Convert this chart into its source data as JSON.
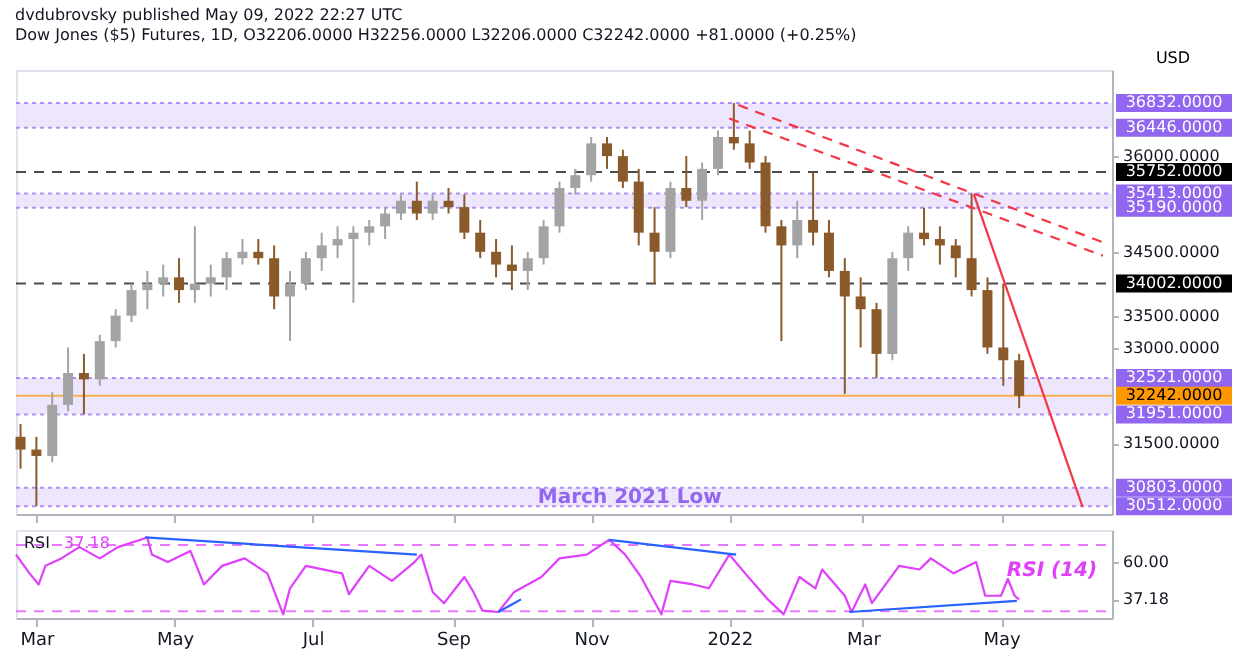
{
  "chart_data": [
    {
      "type": "candlestick",
      "title": "dvdubrovsky published May 09, 2022 22:27 UTC",
      "subtitle": "Dow Jones ($5) Futures, 1D, O32206.0000 H32256.0000 L32206.0000 C32242.0000 +81.0000 (+0.25%)",
      "ylabel": "USD",
      "x": [
        "2021-02-22",
        "2021-03-01",
        "2021-03-08",
        "2021-03-15",
        "2021-03-22",
        "2021-03-29",
        "2021-04-05",
        "2021-04-12",
        "2021-04-19",
        "2021-04-26",
        "2021-05-03",
        "2021-05-10",
        "2021-05-17",
        "2021-05-24",
        "2021-05-31",
        "2021-06-07",
        "2021-06-14",
        "2021-06-21",
        "2021-06-28",
        "2021-07-05",
        "2021-07-12",
        "2021-07-19",
        "2021-07-26",
        "2021-08-02",
        "2021-08-09",
        "2021-08-16",
        "2021-08-23",
        "2021-08-30",
        "2021-09-06",
        "2021-09-13",
        "2021-09-20",
        "2021-09-27",
        "2021-10-04",
        "2021-10-11",
        "2021-10-18",
        "2021-10-25",
        "2021-11-01",
        "2021-11-08",
        "2021-11-15",
        "2021-11-22",
        "2021-11-29",
        "2021-12-06",
        "2021-12-13",
        "2021-12-20",
        "2021-12-27",
        "2022-01-03",
        "2022-01-10",
        "2022-01-17",
        "2022-01-24",
        "2022-01-31",
        "2022-02-07",
        "2022-02-14",
        "2022-02-21",
        "2022-02-28",
        "2022-03-07",
        "2022-03-14",
        "2022-03-21",
        "2022-03-28",
        "2022-04-04",
        "2022-04-11",
        "2022-04-18",
        "2022-04-25",
        "2022-05-02",
        "2022-05-09"
      ],
      "ohlc": [
        [
          31600,
          31800,
          31100,
          31400
        ],
        [
          31400,
          31600,
          30512,
          31300
        ],
        [
          31300,
          32300,
          31200,
          32100
        ],
        [
          32100,
          33000,
          32000,
          32600
        ],
        [
          32600,
          32900,
          31951,
          32500
        ],
        [
          32500,
          33200,
          32400,
          33100
        ],
        [
          33100,
          33600,
          33000,
          33500
        ],
        [
          33500,
          34000,
          33400,
          33900
        ],
        [
          33900,
          34200,
          33600,
          34000
        ],
        [
          34000,
          34300,
          33800,
          34100
        ],
        [
          34100,
          34400,
          33700,
          33900
        ],
        [
          33900,
          34900,
          33700,
          34000
        ],
        [
          34000,
          34300,
          33800,
          34100
        ],
        [
          34100,
          34500,
          33900,
          34400
        ],
        [
          34400,
          34700,
          34300,
          34500
        ],
        [
          34500,
          34700,
          34300,
          34400
        ],
        [
          34400,
          34600,
          33600,
          33800
        ],
        [
          33800,
          34200,
          33100,
          34000
        ],
        [
          34000,
          34500,
          33900,
          34400
        ],
        [
          34400,
          34800,
          34200,
          34600
        ],
        [
          34600,
          34900,
          34400,
          34700
        ],
        [
          34700,
          34900,
          33700,
          34800
        ],
        [
          34800,
          35000,
          34600,
          34900
        ],
        [
          34900,
          35200,
          34700,
          35100
        ],
        [
          35100,
          35400,
          35000,
          35300
        ],
        [
          35300,
          35600,
          35000,
          35100
        ],
        [
          35100,
          35400,
          35000,
          35300
        ],
        [
          35300,
          35500,
          35100,
          35200
        ],
        [
          35200,
          35400,
          34700,
          34800
        ],
        [
          34800,
          35000,
          34400,
          34500
        ],
        [
          34500,
          34700,
          34100,
          34300
        ],
        [
          34300,
          34600,
          33900,
          34200
        ],
        [
          34200,
          34500,
          33900,
          34400
        ],
        [
          34400,
          35000,
          34300,
          34900
        ],
        [
          34900,
          35600,
          34800,
          35500
        ],
        [
          35500,
          35800,
          35400,
          35700
        ],
        [
          35700,
          36300,
          35600,
          36200
        ],
        [
          36200,
          36300,
          35800,
          36000
        ],
        [
          36000,
          36100,
          35500,
          35600
        ],
        [
          35600,
          35800,
          34600,
          34800
        ],
        [
          34800,
          35200,
          34002,
          34500
        ],
        [
          34500,
          35600,
          34400,
          35500
        ],
        [
          35500,
          36000,
          35200,
          35300
        ],
        [
          35300,
          35900,
          35000,
          35800
        ],
        [
          35800,
          36400,
          35700,
          36300
        ],
        [
          36300,
          36832,
          36100,
          36200
        ],
        [
          36200,
          36400,
          35800,
          35900
        ],
        [
          35900,
          36000,
          34800,
          34900
        ],
        [
          34900,
          35000,
          33100,
          34600
        ],
        [
          34600,
          35300,
          34400,
          35000
        ],
        [
          35000,
          35752,
          34600,
          34800
        ],
        [
          34800,
          35000,
          34100,
          34200
        ],
        [
          34200,
          34400,
          32272,
          33800
        ],
        [
          33800,
          34100,
          33000,
          33600
        ],
        [
          33600,
          33700,
          32521,
          32900
        ],
        [
          32900,
          34500,
          32800,
          34400
        ],
        [
          34400,
          34900,
          34200,
          34800
        ],
        [
          34800,
          35190,
          34600,
          34700
        ],
        [
          34700,
          34900,
          34300,
          34600
        ],
        [
          34600,
          34700,
          34100,
          34400
        ],
        [
          34400,
          35413,
          33800,
          33900
        ],
        [
          33900,
          34100,
          32900,
          33000
        ],
        [
          33000,
          34002,
          32400,
          32800
        ],
        [
          32800,
          32900,
          32050,
          32242
        ]
      ],
      "colors": [
        "#8b5a2b",
        "#8b5a2b",
        "#a3a3a3",
        "#a3a3a3",
        "#8b5a2b",
        "#a3a3a3",
        "#a3a3a3",
        "#a3a3a3",
        "#a3a3a3",
        "#a3a3a3",
        "#8b5a2b",
        "#a3a3a3",
        "#a3a3a3",
        "#a3a3a3",
        "#a3a3a3",
        "#8b5a2b",
        "#8b5a2b",
        "#a3a3a3",
        "#a3a3a3",
        "#a3a3a3",
        "#a3a3a3",
        "#a3a3a3",
        "#a3a3a3",
        "#a3a3a3",
        "#a3a3a3",
        "#8b5a2b",
        "#a3a3a3",
        "#8b5a2b",
        "#8b5a2b",
        "#8b5a2b",
        "#8b5a2b",
        "#8b5a2b",
        "#a3a3a3",
        "#a3a3a3",
        "#a3a3a3",
        "#a3a3a3",
        "#a3a3a3",
        "#8b5a2b",
        "#8b5a2b",
        "#8b5a2b",
        "#8b5a2b",
        "#a3a3a3",
        "#8b5a2b",
        "#a3a3a3",
        "#a3a3a3",
        "#8b5a2b",
        "#8b5a2b",
        "#8b5a2b",
        "#8b5a2b",
        "#a3a3a3",
        "#8b5a2b",
        "#8b5a2b",
        "#8b5a2b",
        "#8b5a2b",
        "#8b5a2b",
        "#a3a3a3",
        "#a3a3a3",
        "#8b5a2b",
        "#8b5a2b",
        "#8b5a2b",
        "#8b5a2b",
        "#8b5a2b",
        "#8b5a2b",
        "#8b5a2b"
      ],
      "series": [
        {
          "type": "line",
          "color": "#f23645",
          "line_style": "dashed",
          "x": [
            "2022-01-05",
            "2022-06-15"
          ],
          "values": [
            36800,
            34650
          ]
        },
        {
          "type": "line",
          "color": "#f23645",
          "line_style": "dashed",
          "x": [
            "2022-01-01",
            "2022-06-15"
          ],
          "values": [
            36590,
            34440
          ]
        },
        {
          "type": "line",
          "color": "#f23645",
          "line_style": "solid",
          "x": [
            "2022-04-19",
            "2022-06-06"
          ],
          "values": [
            35400,
            30500
          ]
        }
      ],
      "xlim": [
        "2021-02-20",
        "2022-06-19"
      ],
      "xticks": [
        {
          "value": "2021-03-01",
          "label": null
        },
        {
          "value": "2021-05-01",
          "label": null
        },
        {
          "value": "2021-07-01",
          "label": null
        },
        {
          "value": "2021-09-01",
          "label": null
        },
        {
          "value": "2021-11-01",
          "label": null
        },
        {
          "value": "2022-01-01",
          "label": null
        },
        {
          "value": "2022-03-01",
          "label": null
        },
        {
          "value": "2022-05-01",
          "label": null
        }
      ],
      "ylim": [
        30390,
        37350
      ],
      "yticks": [
        {
          "value": 31500,
          "label": "31500.0000"
        },
        {
          "value": 33000,
          "label": "33000.0000"
        },
        {
          "value": 33500,
          "label": "33500.0000"
        },
        {
          "value": 34500,
          "label": "34500.0000"
        },
        {
          "value": 36000,
          "label": "36000.0000"
        }
      ],
      "tick_labels": "y",
      "bands": [
        {
          "axis": "y",
          "from": 36446,
          "to": 36832,
          "color": "#e8e0fc"
        },
        {
          "axis": "y",
          "from": 35190,
          "to": 35413,
          "color": "#e8e0fc"
        },
        {
          "axis": "y",
          "from": 31951,
          "to": 32521,
          "color": "#e8e0fc"
        },
        {
          "axis": "y",
          "from": 30512,
          "to": 30803,
          "color": "#e8e0fc",
          "label": "March 2021 Low"
        }
      ],
      "ref_lines": [
        {
          "axis": "y",
          "value": 36832,
          "label": "36832.0000",
          "color": "#9166f0",
          "line_style": "dotted"
        },
        {
          "axis": "y",
          "value": 36446,
          "label": "36446.0000",
          "color": "#9166f0",
          "line_style": "dotted"
        },
        {
          "axis": "y",
          "value": 35752,
          "label": "35752.0000",
          "color": "#000000",
          "line_style": "dashed"
        },
        {
          "axis": "y",
          "value": 35413,
          "label": "35413.0000",
          "color": "#9166f0",
          "line_style": "dotted"
        },
        {
          "axis": "y",
          "value": 35190,
          "label": "35190.0000",
          "color": "#9166f0",
          "line_style": "dotted"
        },
        {
          "axis": "y",
          "value": 34002,
          "label": "34002.0000",
          "color": "#000000",
          "line_style": "dashed"
        },
        {
          "axis": "y",
          "value": 32521,
          "label": "32521.0000",
          "color": "#9166f0",
          "line_style": "dotted"
        },
        {
          "axis": "y",
          "value": 32242,
          "label": "32242.0000",
          "color": "#ff9800",
          "line_style": "solid"
        },
        {
          "axis": "y",
          "value": 31951,
          "label": "31951.0000",
          "color": "#9166f0",
          "line_style": "dotted"
        },
        {
          "axis": "y",
          "value": 30803,
          "label": "30803.0000",
          "color": "#9166f0",
          "line_style": "dotted"
        },
        {
          "axis": "y",
          "value": 30512,
          "label": "30512.0000",
          "color": "#9166f0",
          "line_style": "dotted"
        }
      ]
    },
    {
      "type": "line",
      "annotations": [
        "37.18",
        "RSI (14)"
      ],
      "series": [
        {
          "name": "RSI",
          "color": "#e040fb",
          "x": [
            "2021-02-20",
            "2021-02-26",
            "2021-03-02",
            "2021-03-05",
            "2021-03-12",
            "2021-03-20",
            "2021-03-29",
            "2021-04-06",
            "2021-04-19",
            "2021-04-21",
            "2021-04-28",
            "2021-05-08",
            "2021-05-14",
            "2021-05-22",
            "2021-06-01",
            "2021-06-11",
            "2021-06-18",
            "2021-06-21",
            "2021-06-28",
            "2021-07-14",
            "2021-07-17",
            "2021-07-26",
            "2021-08-05",
            "2021-08-15",
            "2021-08-18",
            "2021-08-23",
            "2021-08-28",
            "2021-09-06",
            "2021-09-10",
            "2021-09-14",
            "2021-09-21",
            "2021-09-28",
            "2021-10-10",
            "2021-10-18",
            "2021-10-30",
            "2021-11-09",
            "2021-11-16",
            "2021-11-23",
            "2021-12-02",
            "2021-12-06",
            "2021-12-16",
            "2021-12-23",
            "2022-01-01",
            "2022-01-08",
            "2022-01-18",
            "2022-01-25",
            "2022-02-01",
            "2022-02-08",
            "2022-02-11",
            "2022-02-21",
            "2022-02-24",
            "2022-03-02",
            "2022-03-05",
            "2022-03-17",
            "2022-03-26",
            "2022-03-31",
            "2022-04-10",
            "2022-04-20",
            "2022-04-24",
            "2022-05-01",
            "2022-05-04",
            "2022-05-07",
            "2022-05-09"
          ],
          "values": [
            64.2,
            52.9,
            46.2,
            57.4,
            61.9,
            68.7,
            61.9,
            68.7,
            74.5,
            64.2,
            59.7,
            66.4,
            46.2,
            57.4,
            61.9,
            52.9,
            28.2,
            43.9,
            57.4,
            52.9,
            40.3,
            57.4,
            48.4,
            59.7,
            64.2,
            41.7,
            34.9,
            50.7,
            41.7,
            30.4,
            29.6,
            41.7,
            50.7,
            61.9,
            64.2,
            73.1,
            64.2,
            50.7,
            28.2,
            48.4,
            46.2,
            43.9,
            64.2,
            52.9,
            37.2,
            28.2,
            50.7,
            43.9,
            55.2,
            39.4,
            29.6,
            46.2,
            34.9,
            57.4,
            55.2,
            61.9,
            52.9,
            59.7,
            39.4,
            39.4,
            49.5,
            39.4,
            37.18
          ]
        },
        {
          "color": "#2962ff",
          "x": [
            "2021-04-18",
            "2021-08-16"
          ],
          "values": [
            74.5,
            64.2
          ]
        },
        {
          "color": "#2962ff",
          "x": [
            "2021-09-21",
            "2021-10-01"
          ],
          "values": [
            29.6,
            37.2
          ]
        },
        {
          "color": "#2962ff",
          "x": [
            "2021-11-09",
            "2022-01-04"
          ],
          "values": [
            73.1,
            64.2
          ]
        },
        {
          "color": "#2962ff",
          "x": [
            "2022-02-23",
            "2022-05-08"
          ],
          "values": [
            29.6,
            36.3
          ]
        }
      ],
      "xlim": [
        "2021-02-20",
        "2022-06-19"
      ],
      "xticks": [
        {
          "value": "2021-03-01",
          "label": "Mar"
        },
        {
          "value": "2021-05-01",
          "label": "May"
        },
        {
          "value": "2021-07-01",
          "label": "Jul"
        },
        {
          "value": "2021-09-01",
          "label": "Sep"
        },
        {
          "value": "2021-11-01",
          "label": "Nov"
        },
        {
          "value": "2022-01-01",
          "label": "2022"
        },
        {
          "value": "2022-03-01",
          "label": "Mar"
        },
        {
          "value": "2022-05-01",
          "label": "May"
        }
      ],
      "ylim": [
        26,
        79
      ],
      "yticks": [
        {
          "value": 60,
          "label": "60.00"
        },
        {
          "value": 37.18,
          "label": "37.18"
        }
      ],
      "ref_lines": [
        {
          "axis": "y",
          "value": 70,
          "color": "#e040fb",
          "line_style": "dashed"
        },
        {
          "axis": "y",
          "value": 30,
          "color": "#e040fb",
          "line_style": "dashed"
        }
      ]
    }
  ]
}
